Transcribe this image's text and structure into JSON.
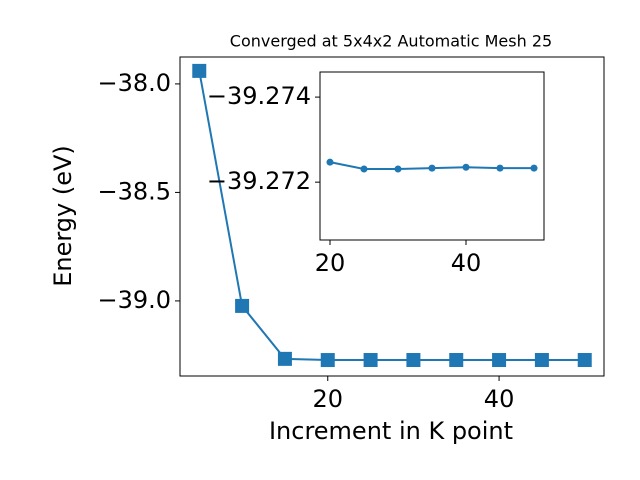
{
  "chart_data": [
    {
      "type": "line",
      "title": "Converged at 5x4x2 Automatic Mesh 25",
      "xlabel": "Increment in K point",
      "ylabel": "Energy (eV)",
      "x": [
        5,
        10,
        15,
        20,
        25,
        30,
        35,
        40,
        45,
        50
      ],
      "series": [
        {
          "color": "#1f77b4",
          "marker": "square",
          "values": [
            -37.94,
            -39.023,
            -39.267,
            -39.2725,
            -39.2723,
            -39.2723,
            -39.2723,
            -39.2724,
            -39.2723,
            -39.2723
          ]
        }
      ],
      "xlim": [
        2.75,
        52.25
      ],
      "ylim": [
        -39.346,
        -37.876
      ],
      "xticks": [
        20,
        40
      ],
      "yticks": [
        {
          "value": -39.0,
          "label": "−39.0"
        },
        {
          "value": -38.5,
          "label": "−38.5"
        },
        {
          "value": -38.0,
          "label": "−38.0"
        }
      ]
    },
    {
      "type": "line",
      "x": [
        20,
        25,
        30,
        35,
        40,
        45,
        50
      ],
      "series": [
        {
          "color": "#1f77b4",
          "marker": "circle",
          "values": [
            -39.27247,
            -39.27231,
            -39.27231,
            -39.27233,
            -39.27235,
            -39.27233,
            -39.27233
          ]
        }
      ],
      "xlim": [
        18.53,
        51.47
      ],
      "ylim": [
        -39.27064,
        -39.27459
      ],
      "xticks": [
        20,
        40
      ],
      "yticks": [
        {
          "value": -39.272,
          "label": "−39.272"
        },
        {
          "value": -39.274,
          "label": "−39.274"
        }
      ]
    }
  ]
}
